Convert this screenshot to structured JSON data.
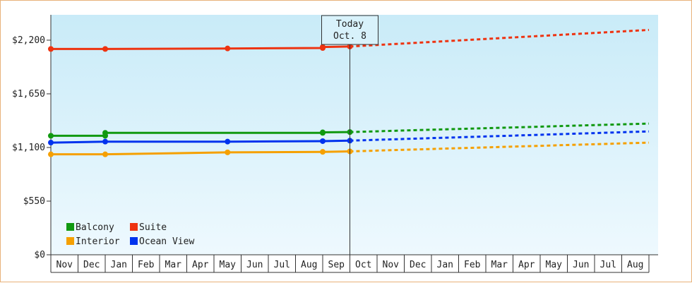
{
  "chart_data": {
    "type": "line",
    "y_ticks": [
      {
        "value": 0,
        "label": "$0"
      },
      {
        "value": 550,
        "label": "$550"
      },
      {
        "value": 1100,
        "label": "$1,100"
      },
      {
        "value": 1650,
        "label": "$1,650"
      },
      {
        "value": 2200,
        "label": "$2,200"
      }
    ],
    "ylim": [
      0,
      2460
    ],
    "x_months": [
      "Nov",
      "Dec",
      "Jan",
      "Feb",
      "Mar",
      "Apr",
      "May",
      "Jun",
      "Jul",
      "Aug",
      "Sep",
      "Oct",
      "Nov",
      "Dec",
      "Jan",
      "Feb",
      "Mar",
      "Apr",
      "May",
      "Jun",
      "Jul",
      "Aug"
    ],
    "today": {
      "label": "Today",
      "date": "Oct. 8",
      "month_position": 11
    },
    "grid": false,
    "legend_position": "bottom-left",
    "series": [
      {
        "name": "Balcony",
        "color": "#119911",
        "points": [
          [
            0,
            1220
          ],
          [
            2,
            1220
          ],
          [
            2,
            1250
          ],
          [
            10,
            1250
          ],
          [
            10,
            1255
          ],
          [
            11,
            1258
          ]
        ],
        "markers": [
          0,
          2,
          2,
          10,
          10,
          11
        ],
        "forecast": [
          [
            11,
            1258
          ],
          [
            22,
            1345
          ]
        ]
      },
      {
        "name": "Suite",
        "color": "#ee3311",
        "points": [
          [
            0,
            2110
          ],
          [
            2,
            2110
          ],
          [
            6.5,
            2115
          ],
          [
            10,
            2120
          ],
          [
            10,
            2130
          ],
          [
            11,
            2135
          ]
        ],
        "markers": [
          0,
          2,
          6.5,
          10,
          10,
          11
        ],
        "forecast": [
          [
            11,
            2135
          ],
          [
            22,
            2305
          ]
        ]
      },
      {
        "name": "Interior",
        "color": "#f5a000",
        "points": [
          [
            0,
            1030
          ],
          [
            2,
            1030
          ],
          [
            6.5,
            1050
          ],
          [
            10,
            1055
          ],
          [
            11,
            1060
          ]
        ],
        "markers": [
          0,
          2,
          6.5,
          10,
          11
        ],
        "forecast": [
          [
            11,
            1060
          ],
          [
            22,
            1150
          ]
        ]
      },
      {
        "name": "Ocean View",
        "color": "#0033ee",
        "points": [
          [
            0,
            1150
          ],
          [
            2,
            1160
          ],
          [
            6.5,
            1160
          ],
          [
            10,
            1165
          ],
          [
            11,
            1170
          ]
        ],
        "markers": [
          0,
          2,
          6.5,
          10,
          11
        ],
        "forecast": [
          [
            11,
            1170
          ],
          [
            22,
            1265
          ]
        ]
      }
    ]
  },
  "legend": [
    {
      "label": "Balcony",
      "color": "#119911"
    },
    {
      "label": "Suite",
      "color": "#ee3311"
    },
    {
      "label": "Interior",
      "color": "#f5a000"
    },
    {
      "label": "Ocean View",
      "color": "#0033ee"
    }
  ]
}
